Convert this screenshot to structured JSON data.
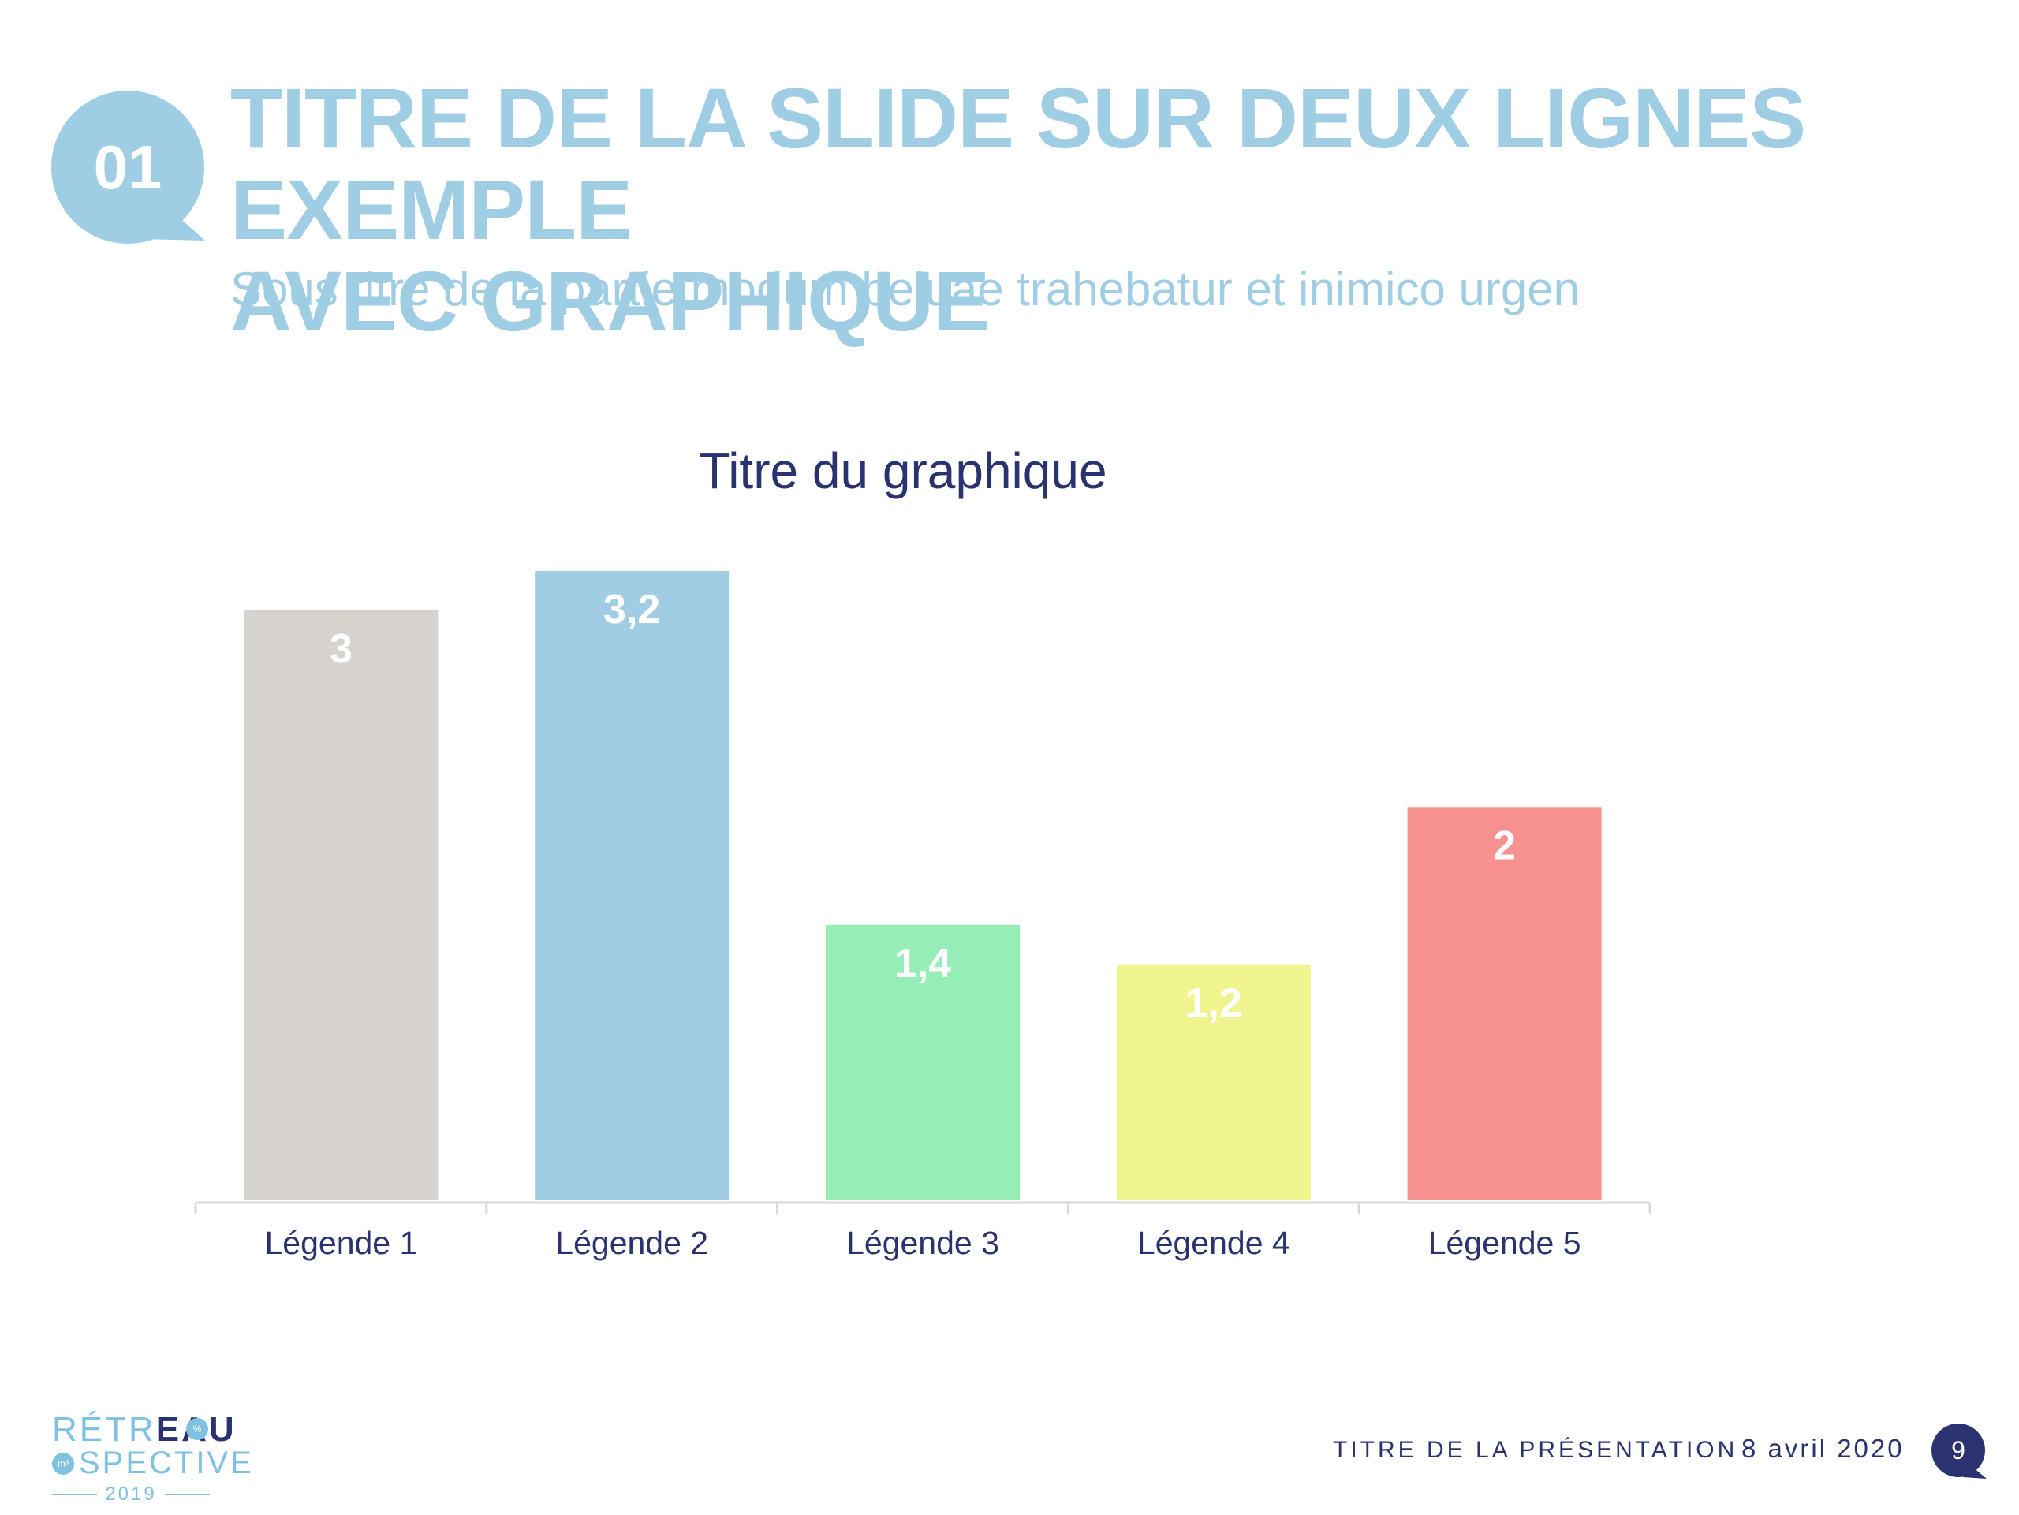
{
  "header": {
    "section_number": "01",
    "title_line1": "TITRE DE LA SLIDE SUR DEUX LIGNES EXEMPLE",
    "title_line2": "AVEC GRAPHIQUE",
    "subtitle": "Sous titre de la partie modum beluae trahebatur et inimico urgen"
  },
  "colors": {
    "accent_light": "#9fcde3",
    "accent_dark": "#2b3270"
  },
  "chart_data": {
    "type": "bar",
    "title": "Titre du graphique",
    "categories": [
      "Légende 1",
      "Légende 2",
      "Légende 3",
      "Légende 4",
      "Légende 5"
    ],
    "values": [
      3,
      3.2,
      1.4,
      1.2,
      2
    ],
    "value_labels": [
      "3",
      "3,2",
      "1,4",
      "1,2",
      "2"
    ],
    "colors": [
      "#d6d3cf",
      "#a0cde3",
      "#96eeb6",
      "#f0f48f",
      "#f7918f"
    ],
    "ylim": [
      0,
      3.2
    ],
    "xlabel": "",
    "ylabel": "",
    "grid": false,
    "legend": "none"
  },
  "logo": {
    "line1_light": "RÉTR",
    "line1_dark": "EAU",
    "badge_top": "%",
    "badge_bottom": "m³",
    "line2": "SPECTIVE",
    "year": "2019"
  },
  "footer": {
    "title": "TITRE DE LA PRÉSENTATION",
    "date": "8 avril 2020",
    "page_number": "9"
  }
}
